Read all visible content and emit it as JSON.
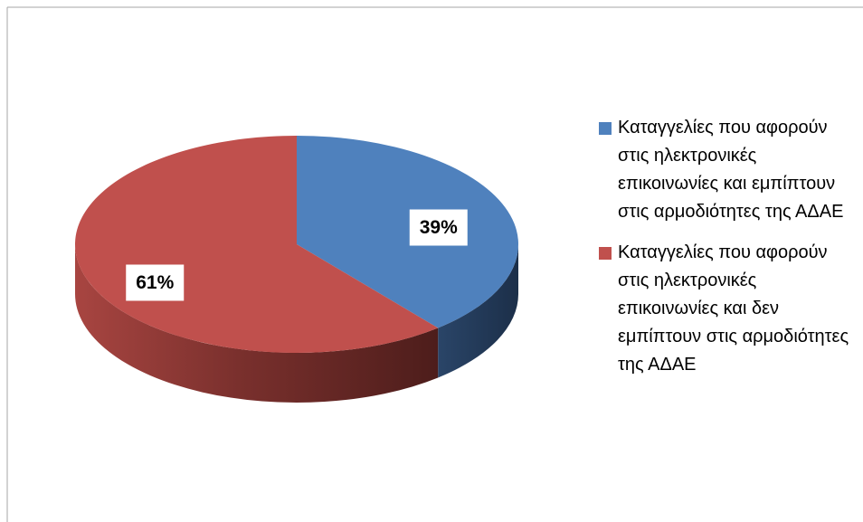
{
  "chart_data": {
    "type": "pie",
    "categories": [
      "Καταγγελίες που αφορούν στις ηλεκτρονικές επικοινωνίες και εμπίπτουν στις αρμοδιότητες της ΑΔΑΕ",
      "Καταγγελίες που αφορούν στις ηλεκτρονικές επικοινωνίες και δεν εμπίπτουν στις αρμοδιότητες της ΑΔΑΕ"
    ],
    "values": [
      39,
      61
    ],
    "value_labels": [
      "39%",
      "61%"
    ],
    "colors": [
      "#4f81bd",
      "#c0504d"
    ]
  }
}
